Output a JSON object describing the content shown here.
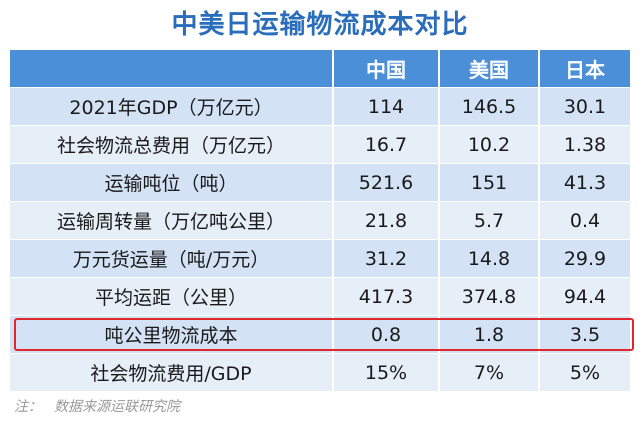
{
  "title": "中美日运输物流成本对比",
  "table": {
    "columns": [
      "中国",
      "美国",
      "日本"
    ],
    "rows": [
      [
        "2021年GDP（万亿元）",
        "114",
        "146.5",
        "30.1"
      ],
      [
        "社会物流总费用（万亿元）",
        "16.7",
        "10.2",
        "1.38"
      ],
      [
        "运输吨位（吨）",
        "521.6",
        "151",
        "41.3"
      ],
      [
        "运输周转量（万亿吨公里）",
        "21.8",
        "5.7",
        "0.4"
      ],
      [
        "万元货运量（吨/万元）",
        "31.2",
        "14.8",
        "29.9"
      ],
      [
        "平均运距（公里）",
        "417.3",
        "374.8",
        "94.4"
      ],
      [
        "吨公里物流成本",
        "0.8",
        "1.8",
        "3.5"
      ],
      [
        "社会物流费用/GDP",
        "15%",
        "7%",
        "5%"
      ]
    ]
  },
  "note": {
    "label": "注：",
    "text": "数据来源运联研究院"
  }
}
